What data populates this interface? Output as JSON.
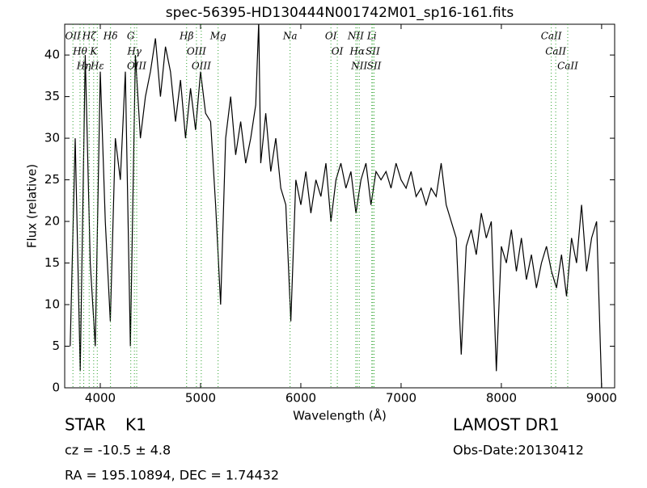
{
  "chart_data": {
    "type": "line",
    "title": "spec-56395-HD130444N001742M01_sp16-161.fits",
    "x_label": "Wavelength (Å)",
    "y_label": "Flux (relative)",
    "xlim": [
      3645,
      9130
    ],
    "ylim": [
      0,
      43.7
    ],
    "xticks": [
      4000,
      5000,
      6000,
      7000,
      8000,
      9000
    ],
    "yticks": [
      0,
      5,
      10,
      15,
      20,
      25,
      30,
      35,
      40
    ],
    "color": "#000000",
    "line_color": "#2ca02c",
    "x": [
      3700,
      3750,
      3800,
      3850,
      3900,
      3950,
      4000,
      4050,
      4100,
      4150,
      4200,
      4250,
      4300,
      4350,
      4400,
      4450,
      4500,
      4550,
      4600,
      4650,
      4700,
      4750,
      4800,
      4850,
      4900,
      4950,
      5000,
      5050,
      5100,
      5150,
      5200,
      5250,
      5300,
      5350,
      5400,
      5450,
      5500,
      5550,
      5580,
      5600,
      5650,
      5700,
      5750,
      5800,
      5850,
      5900,
      5950,
      6000,
      6050,
      6100,
      6150,
      6200,
      6250,
      6300,
      6350,
      6400,
      6450,
      6500,
      6550,
      6600,
      6650,
      6700,
      6750,
      6800,
      6850,
      6900,
      6950,
      7000,
      7050,
      7100,
      7150,
      7200,
      7250,
      7300,
      7350,
      7400,
      7450,
      7500,
      7550,
      7600,
      7650,
      7700,
      7750,
      7800,
      7850,
      7900,
      7950,
      8000,
      8050,
      8100,
      8150,
      8200,
      8250,
      8300,
      8350,
      8400,
      8450,
      8500,
      8550,
      8600,
      8650,
      8700,
      8750,
      8800,
      8850,
      8900,
      8950,
      9000
    ],
    "values": [
      5,
      30,
      2,
      40,
      15,
      5,
      38,
      20,
      8,
      30,
      25,
      38,
      5,
      40,
      30,
      35,
      38,
      42,
      35,
      41,
      38,
      32,
      37,
      30,
      36,
      31,
      38,
      33,
      32,
      22,
      10,
      30,
      35,
      28,
      32,
      27,
      30,
      34,
      44,
      27,
      33,
      26,
      30,
      24,
      22,
      8,
      25,
      22,
      26,
      21,
      25,
      23,
      27,
      20,
      25,
      27,
      24,
      26,
      21,
      25,
      27,
      22,
      26,
      25,
      26,
      24,
      27,
      25,
      24,
      26,
      23,
      24,
      22,
      24,
      23,
      27,
      22,
      20,
      18,
      4,
      17,
      19,
      16,
      21,
      18,
      20,
      2,
      17,
      15,
      19,
      14,
      18,
      13,
      16,
      12,
      15,
      17,
      14,
      12,
      16,
      11,
      18,
      15,
      22,
      14,
      18,
      20,
      0
    ],
    "lines": [
      {
        "label": "OII",
        "wavelength": 3727
      },
      {
        "label": "Hθ",
        "wavelength": 3798
      },
      {
        "label": "Hη",
        "wavelength": 3835
      },
      {
        "label": "Hζ",
        "wavelength": 3889
      },
      {
        "label": "K",
        "wavelength": 3934
      },
      {
        "label": "Hε",
        "wavelength": 3970
      },
      {
        "label": "Hδ",
        "wavelength": 4102
      },
      {
        "label": "G",
        "wavelength": 4304
      },
      {
        "label": "Hγ",
        "wavelength": 4340
      },
      {
        "label": "OIII",
        "wavelength": 4363
      },
      {
        "label": "Hβ",
        "wavelength": 4861
      },
      {
        "label": "OIII",
        "wavelength": 4959
      },
      {
        "label": "OIII",
        "wavelength": 5007
      },
      {
        "label": "Mg",
        "wavelength": 5175
      },
      {
        "label": "Na",
        "wavelength": 5893
      },
      {
        "label": "OI",
        "wavelength": 6300
      },
      {
        "label": "OI",
        "wavelength": 6364
      },
      {
        "label": "NII",
        "wavelength": 6548
      },
      {
        "label": "Hα",
        "wavelength": 6563
      },
      {
        "label": "NII",
        "wavelength": 6583
      },
      {
        "label": "Li",
        "wavelength": 6708
      },
      {
        "label": "SII",
        "wavelength": 6717
      },
      {
        "label": "SII",
        "wavelength": 6731
      },
      {
        "label": "CaII",
        "wavelength": 8498
      },
      {
        "label": "CaII",
        "wavelength": 8542
      },
      {
        "label": "CaII",
        "wavelength": 8662
      }
    ],
    "object_class": "STAR",
    "subclass": "K1",
    "redshift": "cz = -10.5 ± 4.8",
    "coords": "RA = 195.10894, DEC = 1.74432",
    "survey": "LAMOST DR1",
    "obs_date": "Obs-Date:20130412"
  }
}
